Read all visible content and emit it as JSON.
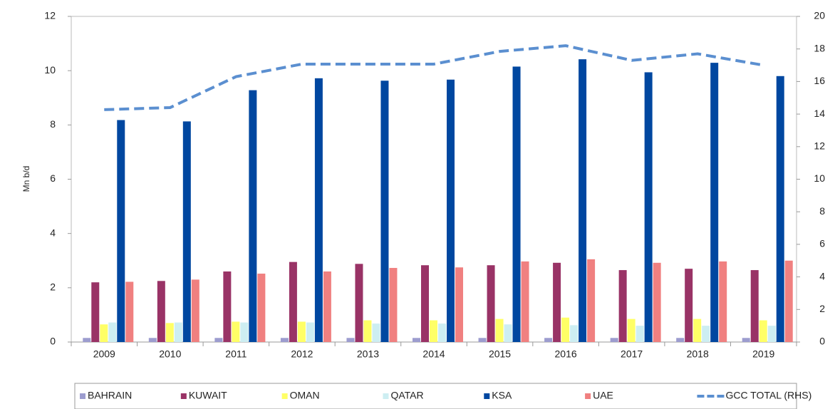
{
  "chart_data": {
    "type": "bar",
    "y_label": "Mn b/d",
    "categories": [
      "2009",
      "2010",
      "2011",
      "2012",
      "2013",
      "2014",
      "2015",
      "2016",
      "2017",
      "2018",
      "2019"
    ],
    "series": [
      {
        "name": "BAHRAIN",
        "color": "#9c9ccf",
        "values": [
          0.15,
          0.15,
          0.15,
          0.15,
          0.15,
          0.15,
          0.15,
          0.15,
          0.15,
          0.15,
          0.15
        ]
      },
      {
        "name": "KUWAIT",
        "color": "#993366",
        "values": [
          2.2,
          2.25,
          2.6,
          2.95,
          2.88,
          2.83,
          2.83,
          2.92,
          2.65,
          2.7,
          2.65
        ]
      },
      {
        "name": "OMAN",
        "color": "#ffff66",
        "values": [
          0.65,
          0.7,
          0.75,
          0.75,
          0.8,
          0.8,
          0.85,
          0.9,
          0.85,
          0.85,
          0.8
        ]
      },
      {
        "name": "QATAR",
        "color": "#cdeef2",
        "values": [
          0.72,
          0.72,
          0.72,
          0.72,
          0.68,
          0.68,
          0.65,
          0.62,
          0.6,
          0.6,
          0.6
        ]
      },
      {
        "name": "KSA",
        "color": "#0047a0",
        "values": [
          8.18,
          8.13,
          9.28,
          9.72,
          9.63,
          9.67,
          10.15,
          10.42,
          9.94,
          10.29,
          9.8
        ]
      },
      {
        "name": "UAE",
        "color": "#f08080",
        "values": [
          2.22,
          2.3,
          2.52,
          2.6,
          2.73,
          2.75,
          2.97,
          3.05,
          2.92,
          2.97,
          3.0
        ]
      },
      {
        "name": "GCC TOTAL (RHS)",
        "color": "#5b8fd0",
        "type": "line",
        "dashed": true,
        "axis": "y2",
        "values": [
          14.27,
          14.4,
          16.3,
          17.07,
          17.07,
          17.07,
          17.85,
          18.2,
          17.3,
          17.7,
          17.0
        ]
      }
    ],
    "ylim": [
      0,
      12
    ],
    "yticks": [
      0,
      2,
      4,
      6,
      8,
      10,
      12
    ],
    "y2lim": [
      0,
      20
    ],
    "y2ticks": [
      0,
      2,
      4,
      6,
      8,
      10,
      12,
      14,
      16,
      18,
      20
    ],
    "legend": "bottom"
  }
}
